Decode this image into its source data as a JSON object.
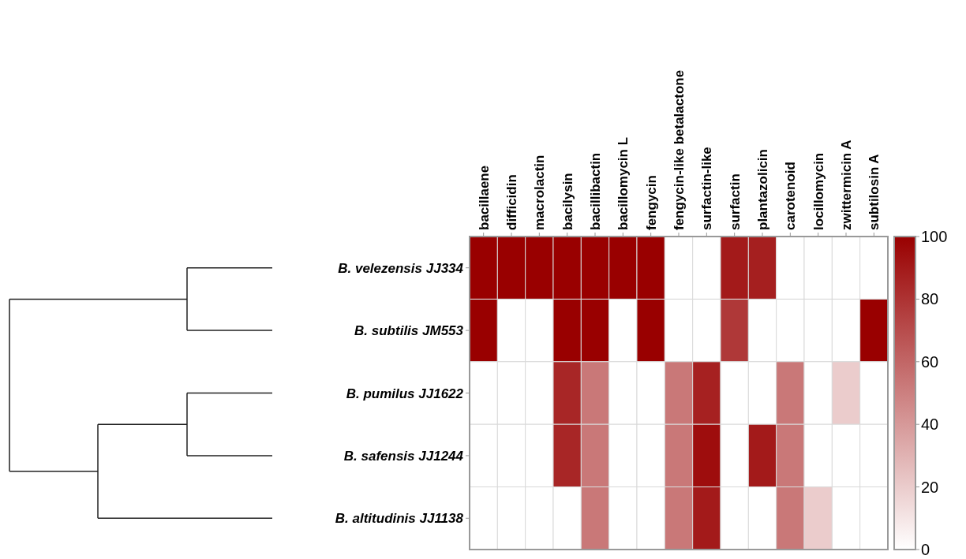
{
  "chart_data": {
    "type": "heatmap",
    "categories": [
      "bacillaene",
      "difficidin",
      "macrolactin",
      "bacilysin",
      "bacillibactin",
      "bacillomycin L",
      "fengycin",
      "fengycin-like betalactone",
      "surfactin-like",
      "surfactin",
      "plantazolicin",
      "carotenoid",
      "locillomycin",
      "zwittermicin A",
      "subtilosin A"
    ],
    "y_categories": [
      "B. velezensis JJ334",
      "B. subtilis JM553",
      "B. pumilus JJ1622",
      "B. safensis JJ1244",
      "B. altitudinis JJ1138"
    ],
    "cells": [
      [
        100,
        100,
        100,
        100,
        100,
        100,
        100,
        0,
        0,
        90,
        88,
        0,
        0,
        0,
        0
      ],
      [
        100,
        0,
        0,
        100,
        100,
        0,
        100,
        0,
        0,
        78,
        0,
        0,
        0,
        0,
        100
      ],
      [
        0,
        0,
        0,
        85,
        53,
        0,
        0,
        53,
        87,
        0,
        0,
        53,
        0,
        20,
        0
      ],
      [
        0,
        0,
        0,
        85,
        53,
        0,
        0,
        53,
        95,
        0,
        90,
        53,
        0,
        0,
        0
      ],
      [
        0,
        0,
        0,
        0,
        53,
        0,
        0,
        53,
        90,
        0,
        0,
        53,
        20,
        0,
        0
      ]
    ],
    "clim": [
      0,
      100
    ],
    "cticks": [
      0,
      20,
      40,
      60,
      80,
      100
    ]
  }
}
